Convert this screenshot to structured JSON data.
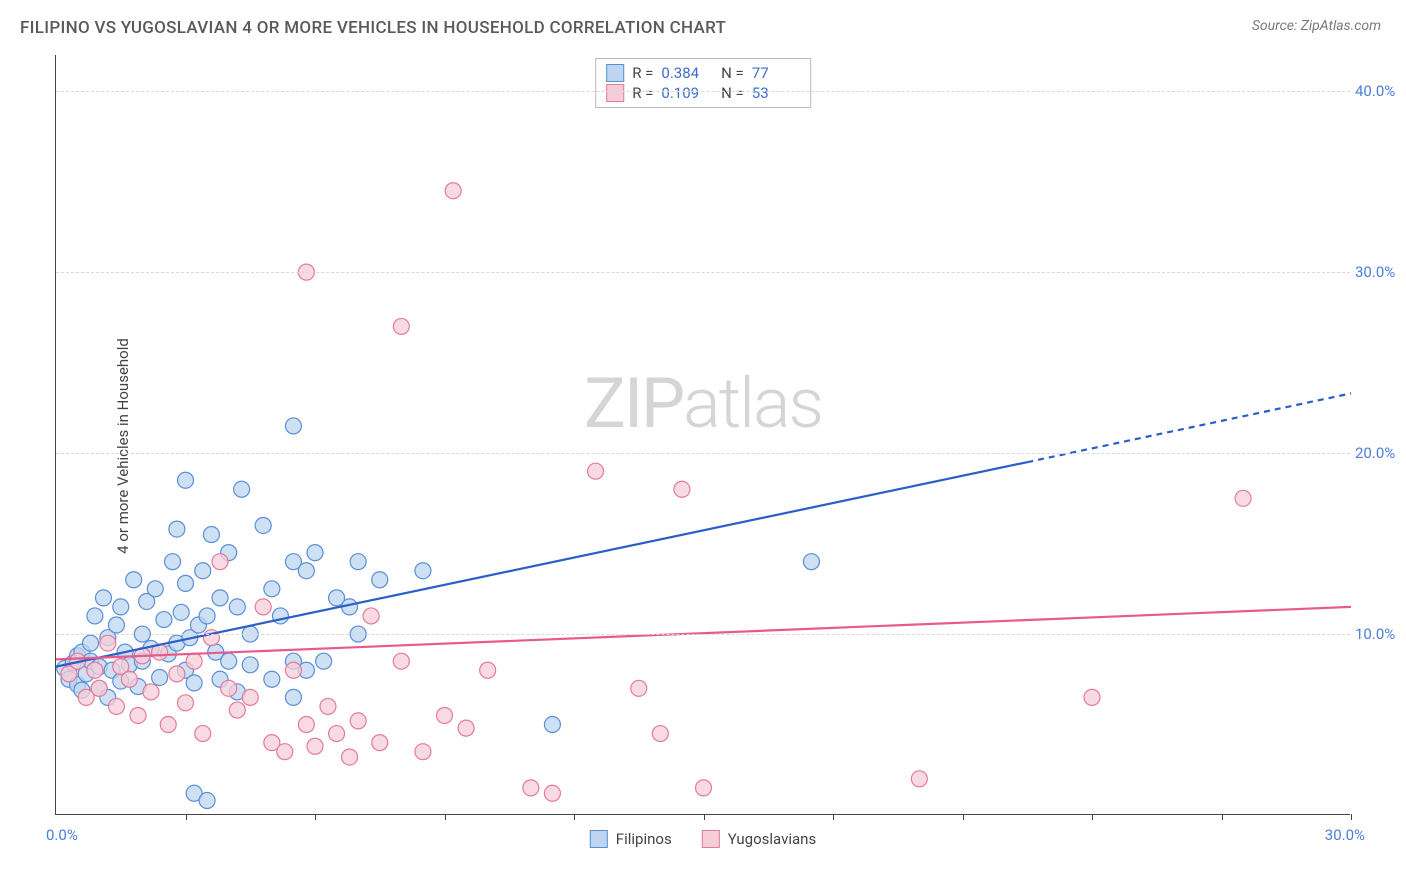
{
  "title": "FILIPINO VS YUGOSLAVIAN 4 OR MORE VEHICLES IN HOUSEHOLD CORRELATION CHART",
  "source": "Source: ZipAtlas.com",
  "watermark": "ZIPatlas",
  "y_axis_title": "4 or more Vehicles in Household",
  "chart": {
    "type": "scatter",
    "background_color": "#ffffff",
    "grid_color": "#d8d8d8",
    "axis_color": "#444444",
    "tick_label_color": "#4a7fd8",
    "xlim": [
      0,
      30
    ],
    "ylim": [
      0,
      42
    ],
    "x_ticks": [
      0,
      3,
      6,
      9,
      12,
      15,
      18,
      21,
      24,
      27,
      30
    ],
    "x_labels": {
      "0": "0.0%",
      "30": "30.0%"
    },
    "y_gridlines": [
      10,
      20,
      30,
      40
    ],
    "y_labels": {
      "10": "10.0%",
      "20": "20.0%",
      "30": "30.0%",
      "40": "40.0%"
    },
    "series": [
      {
        "name": "Filipinos",
        "marker_color_fill": "#bdd5f0",
        "marker_color_stroke": "#5a8fd8",
        "marker_radius": 8,
        "marker_opacity": 0.75,
        "line_color": "#2b5fc7",
        "line_width": 2.2,
        "r_value": "0.384",
        "n_value": "77",
        "trend": {
          "x1": 0,
          "y1": 8.2,
          "x2_solid": 22.5,
          "y2_solid": 19.5,
          "x2_dash": 30,
          "y2_dash": 23.3
        },
        "points": [
          [
            0.2,
            8.1
          ],
          [
            0.3,
            7.5
          ],
          [
            0.4,
            8.4
          ],
          [
            0.5,
            7.2
          ],
          [
            0.5,
            8.8
          ],
          [
            0.6,
            6.9
          ],
          [
            0.6,
            9.0
          ],
          [
            0.7,
            7.8
          ],
          [
            0.8,
            8.5
          ],
          [
            0.8,
            9.5
          ],
          [
            0.9,
            11.0
          ],
          [
            1.0,
            7.0
          ],
          [
            1.0,
            8.2
          ],
          [
            1.1,
            12.0
          ],
          [
            1.2,
            6.5
          ],
          [
            1.2,
            9.8
          ],
          [
            1.3,
            8.0
          ],
          [
            1.4,
            10.5
          ],
          [
            1.5,
            7.4
          ],
          [
            1.5,
            11.5
          ],
          [
            1.6,
            9.0
          ],
          [
            1.7,
            8.3
          ],
          [
            1.8,
            13.0
          ],
          [
            1.9,
            7.1
          ],
          [
            2.0,
            10.0
          ],
          [
            2.0,
            8.5
          ],
          [
            2.1,
            11.8
          ],
          [
            2.2,
            9.2
          ],
          [
            2.3,
            12.5
          ],
          [
            2.4,
            7.6
          ],
          [
            2.5,
            10.8
          ],
          [
            2.6,
            8.9
          ],
          [
            2.7,
            14.0
          ],
          [
            2.8,
            9.5
          ],
          [
            2.9,
            11.2
          ],
          [
            3.0,
            8.0
          ],
          [
            3.0,
            12.8
          ],
          [
            3.1,
            9.8
          ],
          [
            3.2,
            7.3
          ],
          [
            3.3,
            10.5
          ],
          [
            3.4,
            13.5
          ],
          [
            3.5,
            11.0
          ],
          [
            3.6,
            15.5
          ],
          [
            3.7,
            9.0
          ],
          [
            3.8,
            12.0
          ],
          [
            3.0,
            18.5
          ],
          [
            4.0,
            8.5
          ],
          [
            4.0,
            14.5
          ],
          [
            4.2,
            11.5
          ],
          [
            4.3,
            18.0
          ],
          [
            4.5,
            10.0
          ],
          [
            2.8,
            15.8
          ],
          [
            4.8,
            16.0
          ],
          [
            5.0,
            12.5
          ],
          [
            5.2,
            11.0
          ],
          [
            5.5,
            14.0
          ],
          [
            5.5,
            8.5
          ],
          [
            5.8,
            13.5
          ],
          [
            6.0,
            14.5
          ],
          [
            5.5,
            21.5
          ],
          [
            6.5,
            12.0
          ],
          [
            6.8,
            11.5
          ],
          [
            7.0,
            14.0
          ],
          [
            7.5,
            13.0
          ],
          [
            3.2,
            1.2
          ],
          [
            3.5,
            0.8
          ],
          [
            8.5,
            13.5
          ],
          [
            3.8,
            7.5
          ],
          [
            4.2,
            6.8
          ],
          [
            11.5,
            5.0
          ],
          [
            4.5,
            8.3
          ],
          [
            5.0,
            7.5
          ],
          [
            5.5,
            6.5
          ],
          [
            5.8,
            8.0
          ],
          [
            6.2,
            8.5
          ],
          [
            17.5,
            14.0
          ],
          [
            7.0,
            10.0
          ]
        ]
      },
      {
        "name": "Yugoslavians",
        "marker_color_fill": "#f5cdd8",
        "marker_color_stroke": "#e57a9a",
        "marker_radius": 8,
        "marker_opacity": 0.75,
        "line_color": "#e85a8a",
        "line_width": 2.2,
        "r_value": "0.109",
        "n_value": "53",
        "trend": {
          "x1": 0,
          "y1": 8.6,
          "x2_solid": 30,
          "y2_solid": 11.5
        },
        "points": [
          [
            0.3,
            7.8
          ],
          [
            0.5,
            8.5
          ],
          [
            0.7,
            6.5
          ],
          [
            0.9,
            8.0
          ],
          [
            1.0,
            7.0
          ],
          [
            1.2,
            9.5
          ],
          [
            1.4,
            6.0
          ],
          [
            1.5,
            8.2
          ],
          [
            1.7,
            7.5
          ],
          [
            1.9,
            5.5
          ],
          [
            2.0,
            8.8
          ],
          [
            2.2,
            6.8
          ],
          [
            2.4,
            9.0
          ],
          [
            2.6,
            5.0
          ],
          [
            2.8,
            7.8
          ],
          [
            3.0,
            6.2
          ],
          [
            3.2,
            8.5
          ],
          [
            3.4,
            4.5
          ],
          [
            3.6,
            9.8
          ],
          [
            3.8,
            14.0
          ],
          [
            4.0,
            7.0
          ],
          [
            4.2,
            5.8
          ],
          [
            4.5,
            6.5
          ],
          [
            4.8,
            11.5
          ],
          [
            5.0,
            4.0
          ],
          [
            5.3,
            3.5
          ],
          [
            5.5,
            8.0
          ],
          [
            5.8,
            5.0
          ],
          [
            6.0,
            3.8
          ],
          [
            6.3,
            6.0
          ],
          [
            6.5,
            4.5
          ],
          [
            6.8,
            3.2
          ],
          [
            7.0,
            5.2
          ],
          [
            7.3,
            11.0
          ],
          [
            7.5,
            4.0
          ],
          [
            8.0,
            8.5
          ],
          [
            8.5,
            3.5
          ],
          [
            9.0,
            5.5
          ],
          [
            9.2,
            34.5
          ],
          [
            9.5,
            4.8
          ],
          [
            10.0,
            8.0
          ],
          [
            8.0,
            27.0
          ],
          [
            11.0,
            1.5
          ],
          [
            11.5,
            1.2
          ],
          [
            12.5,
            19.0
          ],
          [
            13.5,
            7.0
          ],
          [
            14.0,
            4.5
          ],
          [
            14.5,
            18.0
          ],
          [
            15.0,
            1.5
          ],
          [
            20.0,
            2.0
          ],
          [
            24.0,
            6.5
          ],
          [
            27.5,
            17.5
          ],
          [
            5.8,
            30.0
          ]
        ]
      }
    ],
    "stats_box": {
      "border_color": "#bbbbbb",
      "label_color": "#444444",
      "value_color": "#3b6dd0"
    },
    "bottom_legend": [
      {
        "label": "Filipinos",
        "fill": "#bdd5f0",
        "stroke": "#5a8fd8"
      },
      {
        "label": "Yugoslavians",
        "fill": "#f5cdd8",
        "stroke": "#e57a9a"
      }
    ]
  }
}
